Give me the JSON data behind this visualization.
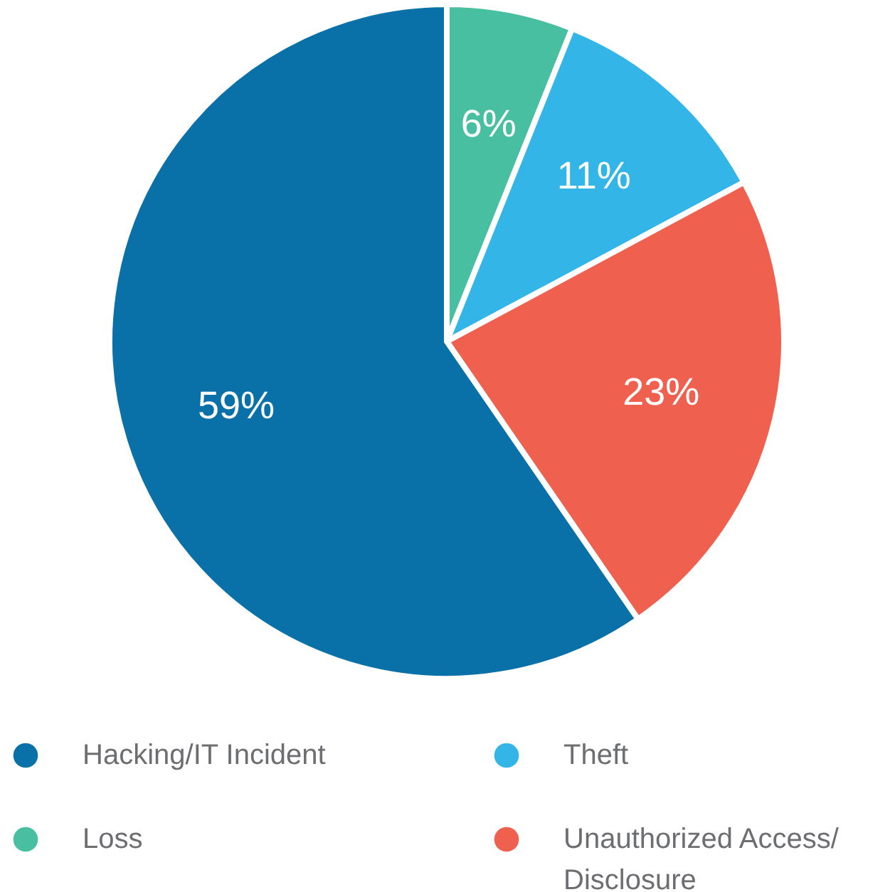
{
  "chart_data": {
    "type": "pie",
    "categories": [
      "Loss",
      "Theft",
      "Unauthorized Access/ Disclosure",
      "Hacking/IT Incident"
    ],
    "values": [
      6,
      11,
      23,
      59
    ],
    "colors": [
      "#47bfa0",
      "#33b5e8",
      "#f0604f",
      "#0a71a8"
    ],
    "value_labels": [
      "6%",
      "11%",
      "23%",
      "59%"
    ],
    "legend": "bottom"
  }
}
